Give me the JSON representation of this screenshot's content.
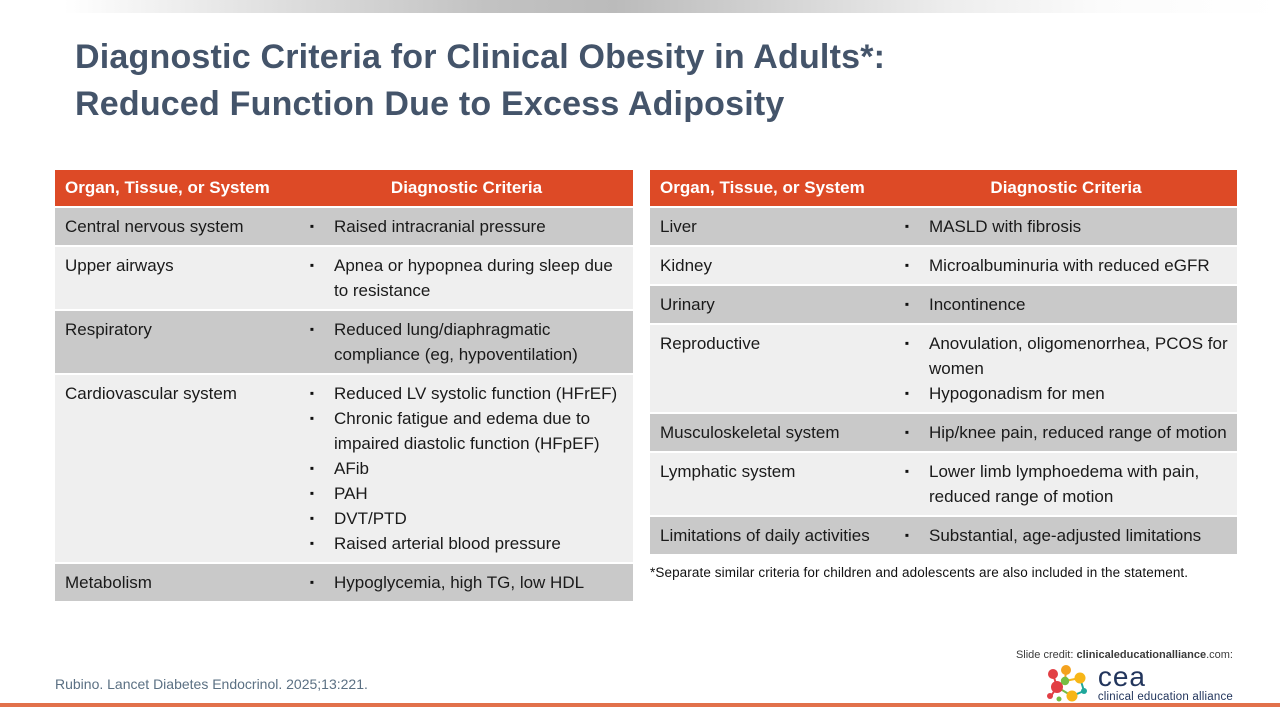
{
  "slide": {
    "title_line1": "Diagnostic Criteria for Clinical Obesity in Adults*:",
    "title_line2": "Reduced Function Due to Excess Adiposity"
  },
  "table_headers": [
    "Organ, Tissue, or System",
    "Diagnostic Criteria"
  ],
  "left_table": {
    "rows": [
      {
        "organ": "Central nervous system",
        "criteria": [
          "Raised intracranial pressure"
        ]
      },
      {
        "organ": "Upper airways",
        "criteria": [
          "Apnea or hypopnea during sleep due to resistance"
        ]
      },
      {
        "organ": "Respiratory",
        "criteria": [
          "Reduced lung/diaphragmatic compliance (eg, hypoventilation)"
        ]
      },
      {
        "organ": "Cardiovascular system",
        "criteria": [
          "Reduced LV systolic function (HFrEF)",
          "Chronic fatigue and edema due to impaired diastolic function (HFpEF)",
          "AFib",
          "PAH",
          "DVT/PTD",
          "Raised arterial blood pressure"
        ]
      },
      {
        "organ": "Metabolism",
        "criteria": [
          "Hypoglycemia, high TG, low HDL"
        ]
      }
    ]
  },
  "right_table": {
    "rows": [
      {
        "organ": "Liver",
        "criteria": [
          "MASLD with fibrosis"
        ]
      },
      {
        "organ": "Kidney",
        "criteria": [
          "Microalbuminuria with reduced eGFR"
        ]
      },
      {
        "organ": "Urinary",
        "criteria": [
          "Incontinence"
        ]
      },
      {
        "organ": "Reproductive",
        "criteria": [
          "Anovulation, oligomenorrhea, PCOS for women",
          "Hypogonadism for men"
        ]
      },
      {
        "organ": "Musculoskeletal system",
        "criteria": [
          "Hip/knee pain, reduced range of motion"
        ]
      },
      {
        "organ": "Lymphatic system",
        "criteria": [
          "Lower limb lymphoedema with pain, reduced range of motion"
        ]
      },
      {
        "organ": "Limitations of daily activities",
        "criteria": [
          "Substantial, age-adjusted limitations"
        ]
      }
    ]
  },
  "footnote": "*Separate similar criteria for children and adolescents are also included in the statement.",
  "citation": "Rubino. Lancet Diabetes Endocrinol. 2025;13:221.",
  "slide_credit": {
    "prefix": "Slide credit: ",
    "site": "clinicaleducationalliance",
    "suffix": ".com:"
  },
  "logo": {
    "acronym": "cea",
    "tagline": "clinical education alliance"
  },
  "icons": {
    "bullet": "▪"
  },
  "colors": {
    "header_bg": "#DD4A26",
    "row_gray": "#C9C9C9",
    "row_light": "#EFEFEF",
    "title_text": "#44546A",
    "citation_text": "#5B7083",
    "footnote_text": "#111111",
    "bottom_bar": "#E2714B",
    "logo_navy": "#22355C",
    "logo_red": "#E23F44",
    "logo_orange": "#F4A21F",
    "logo_yellow": "#F7B617",
    "logo_green": "#77BD43",
    "logo_teal": "#1FA79B"
  }
}
